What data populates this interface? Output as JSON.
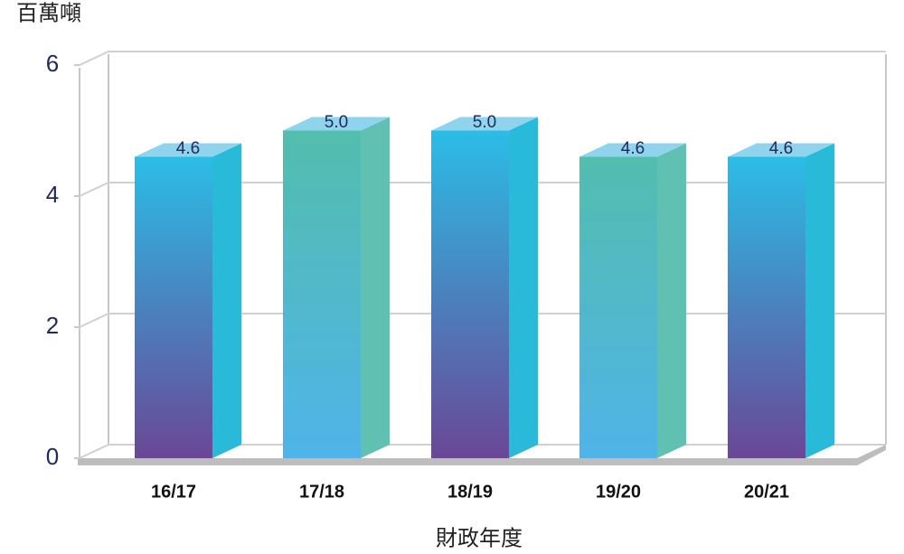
{
  "chart_data": {
    "type": "bar",
    "y_axis_label": "百萬噸",
    "x_axis_label": "財政年度",
    "categories": [
      "16/17",
      "17/18",
      "18/19",
      "19/20",
      "20/21"
    ],
    "values": [
      4.6,
      5.0,
      5.0,
      4.6,
      4.6
    ],
    "value_labels": [
      "4.6",
      "5.0",
      "5.0",
      "4.6",
      "4.6"
    ],
    "colors_top": [
      "#2bbde6",
      "#53bdae",
      "#2bbde6",
      "#53bdae",
      "#2bbde6"
    ],
    "colors_bottom": [
      "#6a4796",
      "#4fb4e8",
      "#6a4796",
      "#4fb4e8",
      "#6a4796"
    ],
    "colors_side": [
      "#29b9d9",
      "#60c1b3",
      "#29b9d9",
      "#60c1b3",
      "#29b9d9"
    ],
    "ylim": [
      0,
      6
    ],
    "yticks": [
      0,
      2,
      4,
      6
    ],
    "grid": true
  }
}
